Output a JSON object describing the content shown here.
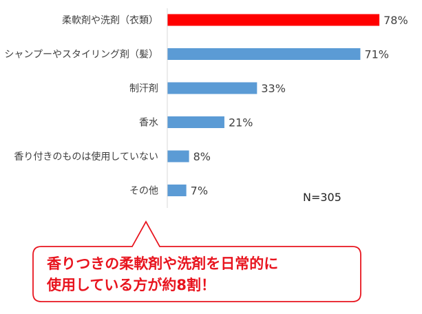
{
  "chart_data": {
    "type": "bar",
    "orientation": "horizontal",
    "categories": [
      "柔軟剤や洗剤（衣類）",
      "シャンプーやスタイリング剤（髪）",
      "制汗剤",
      "香水",
      "香り付きのものは使用していない",
      "その他"
    ],
    "values": [
      78,
      71,
      33,
      21,
      8,
      7
    ],
    "value_labels": [
      "78%",
      "71%",
      "33%",
      "21%",
      "8%",
      "7%"
    ],
    "unit": "%",
    "xlim": [
      0,
      100
    ],
    "colors": [
      "#ff0000",
      "#5b9bd5",
      "#5b9bd5",
      "#5b9bd5",
      "#5b9bd5",
      "#5b9bd5"
    ],
    "grid": false,
    "annotation": "N=305"
  },
  "callout": {
    "line1": "香りつきの柔軟剤や洗剤を日常的に",
    "line2": "使用している方が約8割！",
    "border_color": "#e8141e",
    "text_color": "#e8141e"
  }
}
